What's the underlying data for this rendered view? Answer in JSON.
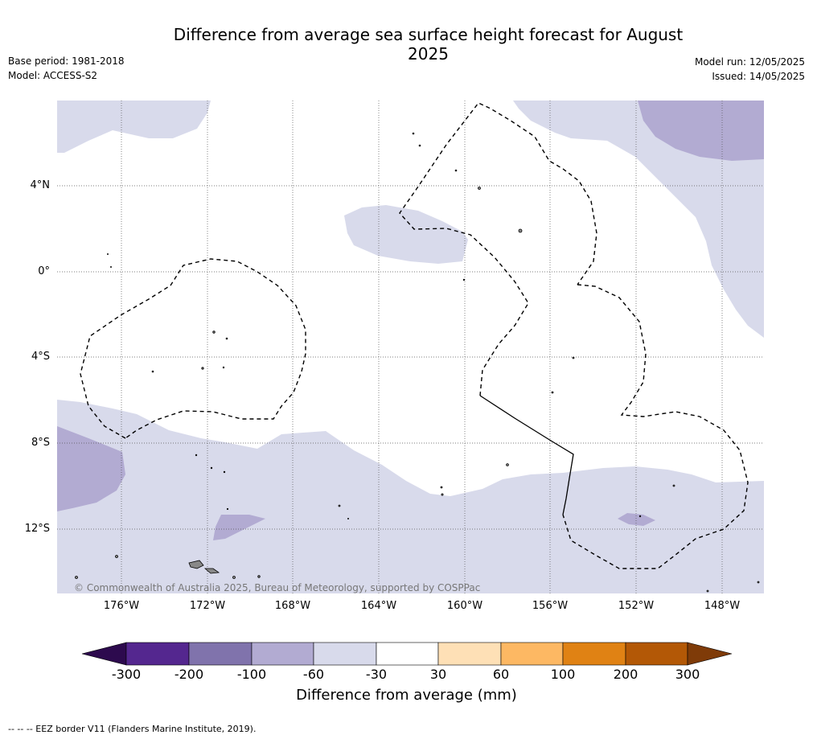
{
  "title": "Difference from average sea surface height forecast for August 2025",
  "base_period": "Base period: 1981-2018",
  "model": "Model: ACCESS-S2",
  "model_run": "Model run: 12/05/2025",
  "issued": "Issued: 14/05/2025",
  "latitude_labels": [
    "4°N",
    "0°",
    "4°S",
    "8°S",
    "12°S"
  ],
  "longitude_labels": [
    "176°W",
    "172°W",
    "168°W",
    "164°W",
    "160°W",
    "156°W",
    "152°W",
    "148°W"
  ],
  "copyright": "© Commonwealth of Australia 2025, Bureau of Meteorology, supported by COSPPac",
  "colorbar": {
    "label": "Difference from average (mm)",
    "ticks": [
      "-300",
      "-200",
      "-100",
      "-60",
      "-30",
      "30",
      "60",
      "100",
      "200",
      "300"
    ],
    "colors": [
      "#2d0a4e",
      "#54278f",
      "#8073ac",
      "#b2abd2",
      "#d8daeb",
      "#ffffff",
      "#fee0b6",
      "#fdb863",
      "#e08214",
      "#b35806",
      "#7f3b08"
    ]
  },
  "footer": "--  --  -- EEZ border V11 (Flanders Marine Institute, 2019).",
  "map_colors": {
    "light_purple": "#d8daeb",
    "mid_purple": "#b2abd2",
    "ocean": "#ffffff",
    "land": "#888888"
  }
}
